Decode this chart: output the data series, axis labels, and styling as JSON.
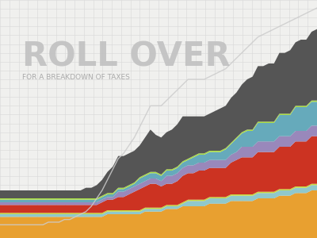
{
  "title_main": "ROLL OVER",
  "title_sub": "FOR A BREAKDOWN OF TAXES",
  "background_color": "#f0f0ee",
  "grid_color": "#d8d8d8",
  "n_points": 60,
  "layers": [
    {
      "name": "orange",
      "color": "#e8a030",
      "values": [
        8,
        8,
        8,
        8,
        8,
        8,
        8,
        8,
        8,
        8,
        8,
        8,
        8,
        8,
        8,
        8,
        8,
        8,
        8,
        8,
        9,
        9,
        9,
        9,
        9,
        9,
        9,
        10,
        10,
        10,
        10,
        11,
        11,
        11,
        12,
        12,
        12,
        12,
        12,
        13,
        13,
        13,
        13,
        14,
        14,
        14,
        14,
        14,
        15,
        15,
        15,
        15,
        16,
        16,
        16,
        17,
        17,
        17,
        18,
        18
      ]
    },
    {
      "name": "light_blue_thin",
      "color": "#90c8cc",
      "values": [
        1,
        1,
        1,
        1,
        1,
        1,
        1,
        1,
        1,
        1,
        1,
        1,
        1,
        1,
        1,
        1,
        1,
        1,
        1,
        1,
        1,
        1,
        1,
        1,
        1,
        1,
        1,
        1,
        1,
        1,
        1,
        1,
        1,
        1,
        1,
        2,
        2,
        2,
        2,
        2,
        2,
        2,
        2,
        2,
        2,
        2,
        2,
        2,
        2,
        2,
        2,
        2,
        2,
        2,
        2,
        2,
        2,
        2,
        2,
        2
      ]
    },
    {
      "name": "yellow_green_thin",
      "color": "#c8d840",
      "values": [
        0.5,
        0.5,
        0.5,
        0.5,
        0.5,
        0.5,
        0.5,
        0.5,
        0.5,
        0.5,
        0.5,
        0.5,
        0.5,
        0.5,
        0.5,
        0.5,
        0.5,
        0.5,
        0.5,
        0.5,
        0.5,
        0.5,
        0.5,
        0.5,
        0.5,
        0.5,
        0.5,
        0.5,
        0.5,
        0.5,
        0.5,
        0.5,
        0.5,
        0.5,
        0.5,
        0.5,
        0.5,
        0.5,
        0.5,
        0.5,
        0.5,
        0.5,
        0.5,
        0.5,
        0.5,
        0.5,
        0.5,
        0.5,
        0.5,
        0.5,
        0.5,
        0.5,
        0.5,
        0.5,
        0.5,
        0.5,
        0.5,
        0.5,
        0.5,
        0.5
      ]
    },
    {
      "name": "red",
      "color": "#cc3322",
      "values": [
        3,
        3,
        3,
        3,
        3,
        3,
        3,
        3,
        3,
        3,
        3,
        3,
        3,
        3,
        3,
        3,
        3,
        3,
        3,
        4,
        4,
        4,
        5,
        5,
        6,
        7,
        8,
        8,
        9,
        9,
        8,
        8,
        8,
        9,
        10,
        10,
        10,
        11,
        11,
        11,
        11,
        11,
        11,
        12,
        13,
        14,
        14,
        14,
        15,
        15,
        15,
        15,
        16,
        16,
        16,
        17,
        17,
        17,
        18,
        18
      ]
    },
    {
      "name": "purple",
      "color": "#9988bb",
      "values": [
        1,
        1,
        1,
        1,
        1,
        1,
        1,
        1,
        1,
        1,
        1,
        1,
        1,
        1,
        1,
        1,
        1,
        1,
        1,
        1,
        1,
        1,
        2,
        2,
        2,
        2,
        2,
        2,
        2,
        2,
        2,
        3,
        3,
        3,
        3,
        3,
        3,
        3,
        3,
        3,
        3,
        3,
        3,
        3,
        3,
        4,
        4,
        4,
        4,
        4,
        4,
        4,
        4,
        4,
        4,
        4,
        4,
        4,
        4,
        4
      ]
    },
    {
      "name": "sky_blue",
      "color": "#66aabb",
      "values": [
        1,
        1,
        1,
        1,
        1,
        1,
        1,
        1,
        1,
        1,
        1,
        1,
        1,
        1,
        1,
        1,
        1,
        1,
        1,
        1,
        1,
        1,
        1,
        1,
        1,
        1,
        2,
        2,
        2,
        2,
        2,
        2,
        2,
        2,
        2,
        2,
        3,
        3,
        3,
        3,
        3,
        3,
        4,
        4,
        5,
        5,
        6,
        6,
        7,
        7,
        7,
        7,
        8,
        8,
        8,
        9,
        9,
        9,
        9,
        9
      ]
    },
    {
      "name": "lime_thin",
      "color": "#aadd44",
      "values": [
        0.5,
        0.5,
        0.5,
        0.5,
        0.5,
        0.5,
        0.5,
        0.5,
        0.5,
        0.5,
        0.5,
        0.5,
        0.5,
        0.5,
        0.5,
        0.5,
        0.5,
        0.5,
        0.5,
        0.5,
        0.5,
        0.5,
        0.5,
        0.5,
        0.5,
        0.5,
        0.5,
        0.5,
        0.5,
        0.5,
        0.5,
        0.5,
        0.5,
        0.5,
        0.5,
        0.5,
        0.5,
        0.5,
        0.5,
        0.5,
        0.5,
        0.5,
        0.5,
        0.5,
        0.5,
        0.5,
        0.5,
        0.5,
        0.5,
        0.5,
        0.5,
        0.5,
        0.5,
        0.5,
        0.5,
        0.5,
        0.5,
        0.5,
        0.5,
        0.5
      ]
    },
    {
      "name": "dark_gray",
      "color": "#555555",
      "values": [
        3,
        3,
        3,
        3,
        3,
        3,
        3,
        3,
        3,
        3,
        3,
        3,
        3,
        3,
        3,
        3,
        4,
        4,
        5,
        6,
        8,
        10,
        12,
        12,
        12,
        12,
        12,
        14,
        16,
        14,
        14,
        14,
        15,
        16,
        17,
        16,
        15,
        14,
        14,
        14,
        15,
        16,
        16,
        17,
        17,
        18,
        19,
        20,
        21,
        21,
        22,
        22,
        23,
        23,
        24,
        24,
        25,
        25,
        26,
        27
      ]
    },
    {
      "name": "outline_line",
      "color": "#cccccc",
      "values": [
        5,
        5,
        5,
        5,
        5,
        5,
        5,
        5,
        5,
        6,
        6,
        6,
        7,
        7,
        8,
        9,
        10,
        12,
        15,
        18,
        22,
        26,
        30,
        32,
        35,
        38,
        42,
        46,
        50,
        50,
        50,
        52,
        54,
        56,
        58,
        60,
        60,
        60,
        60,
        61,
        62,
        63,
        64,
        66,
        68,
        70,
        72,
        74,
        76,
        77,
        78,
        79,
        80,
        81,
        82,
        83,
        84,
        85,
        86,
        87
      ]
    }
  ]
}
